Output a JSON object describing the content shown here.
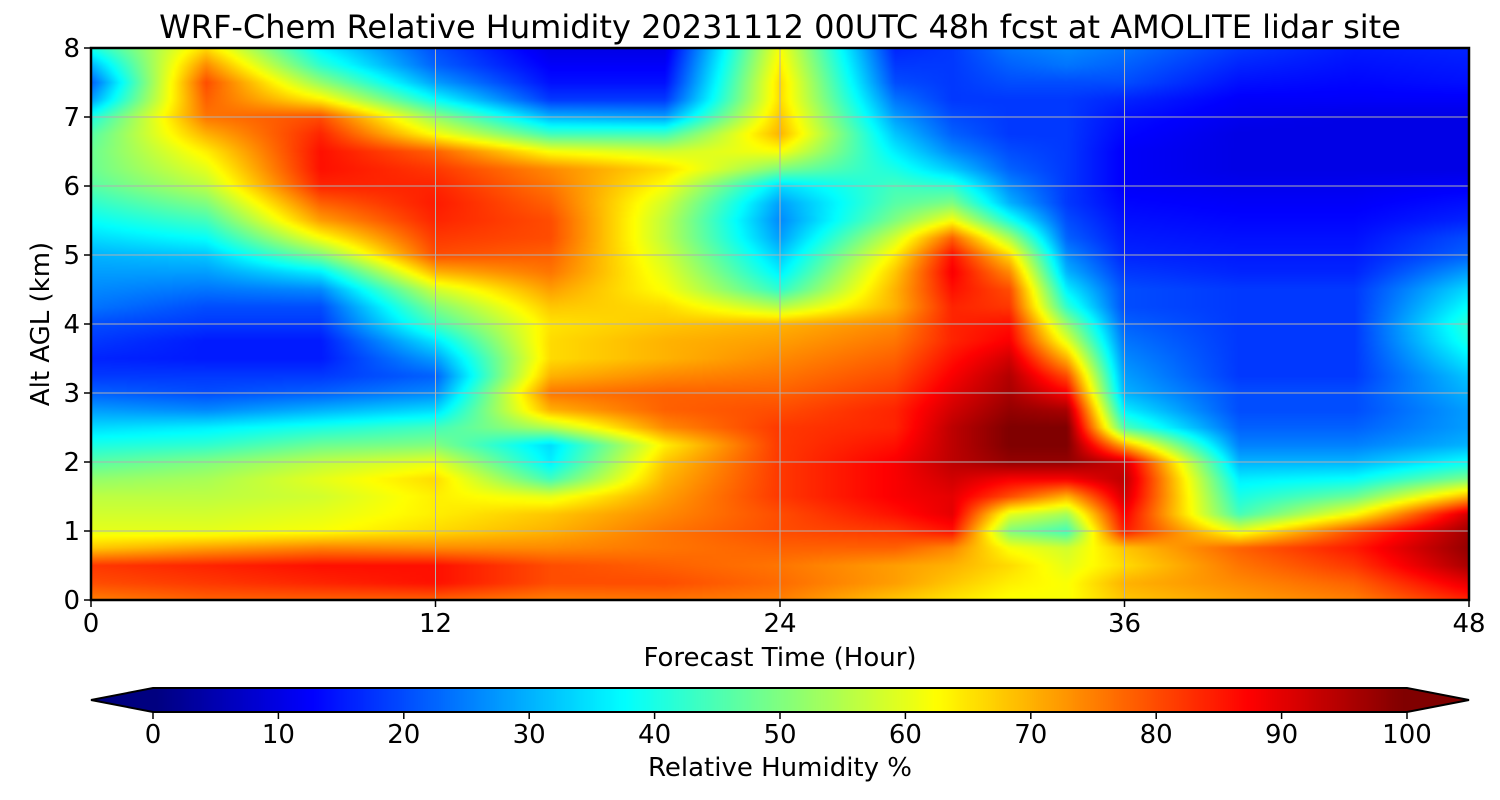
{
  "chart_data": {
    "type": "heatmap",
    "title": "WRF-Chem Relative Humidity 20231112 00UTC 48h fcst at AMOLITE lidar site",
    "xlabel": "Forecast Time (Hour)",
    "ylabel": "Alt AGL (km)",
    "xlim": [
      0,
      48
    ],
    "ylim": [
      0,
      8
    ],
    "xticks": [
      0,
      12,
      24,
      36,
      48
    ],
    "yticks": [
      0,
      1,
      2,
      3,
      4,
      5,
      6,
      7,
      8
    ],
    "grid": true,
    "colorbar": {
      "label": "Relative Humidity %",
      "ticks": [
        0,
        10,
        20,
        30,
        40,
        50,
        60,
        70,
        80,
        90,
        100
      ],
      "range": [
        0,
        100
      ],
      "colormap": "jet",
      "extend": "both",
      "orientation": "horizontal"
    },
    "x": [
      0,
      4,
      8,
      12,
      16,
      20,
      24,
      28,
      30,
      32,
      34,
      36,
      40,
      44,
      48
    ],
    "y": [
      0,
      0.25,
      0.5,
      0.75,
      1,
      1.25,
      1.5,
      1.75,
      2,
      2.25,
      2.5,
      2.75,
      3,
      3.25,
      3.5,
      3.75,
      4,
      4.25,
      4.5,
      4.75,
      5,
      5.25,
      5.5,
      5.75,
      6,
      6.25,
      6.5,
      6.75,
      7,
      7.25,
      7.5,
      7.75,
      8
    ],
    "z": [
      [
        75,
        78,
        78,
        78,
        75,
        76,
        75,
        68,
        65,
        62,
        62,
        68,
        72,
        75,
        84
      ],
      [
        80,
        82,
        84,
        86,
        80,
        80,
        77,
        72,
        68,
        64,
        62,
        70,
        74,
        78,
        90
      ],
      [
        82,
        84,
        86,
        86,
        80,
        78,
        76,
        72,
        70,
        66,
        60,
        66,
        76,
        82,
        96
      ],
      [
        68,
        72,
        75,
        74,
        74,
        76,
        78,
        78,
        74,
        62,
        58,
        68,
        78,
        85,
        98
      ],
      [
        60,
        60,
        62,
        66,
        70,
        76,
        80,
        82,
        86,
        50,
        44,
        85,
        60,
        80,
        97
      ],
      [
        58,
        58,
        60,
        64,
        68,
        74,
        80,
        86,
        90,
        60,
        54,
        88,
        44,
        62,
        92
      ],
      [
        56,
        56,
        58,
        64,
        60,
        72,
        82,
        88,
        90,
        80,
        70,
        92,
        40,
        48,
        70
      ],
      [
        52,
        54,
        60,
        66,
        44,
        70,
        82,
        88,
        92,
        88,
        88,
        94,
        36,
        38,
        50
      ],
      [
        46,
        50,
        56,
        60,
        36,
        68,
        82,
        88,
        94,
        98,
        98,
        92,
        30,
        30,
        38
      ],
      [
        40,
        42,
        48,
        50,
        34,
        64,
        82,
        86,
        94,
        100,
        100,
        70,
        25,
        25,
        30
      ],
      [
        34,
        36,
        40,
        44,
        55,
        74,
        82,
        84,
        94,
        100,
        100,
        45,
        22,
        22,
        28
      ],
      [
        28,
        26,
        30,
        34,
        70,
        78,
        80,
        84,
        92,
        98,
        96,
        36,
        20,
        20,
        28
      ],
      [
        22,
        20,
        22,
        26,
        76,
        78,
        78,
        82,
        90,
        96,
        88,
        30,
        20,
        20,
        30
      ],
      [
        18,
        18,
        18,
        22,
        70,
        74,
        76,
        80,
        88,
        95,
        80,
        28,
        18,
        18,
        32
      ],
      [
        16,
        15,
        15,
        28,
        66,
        70,
        74,
        78,
        86,
        92,
        70,
        26,
        18,
        18,
        36
      ],
      [
        18,
        15,
        15,
        35,
        66,
        70,
        72,
        76,
        84,
        88,
        60,
        24,
        18,
        18,
        40
      ],
      [
        20,
        18,
        18,
        44,
        65,
        68,
        70,
        74,
        84,
        86,
        52,
        22,
        18,
        18,
        42
      ],
      [
        24,
        20,
        20,
        50,
        68,
        66,
        55,
        70,
        84,
        82,
        42,
        20,
        18,
        18,
        38
      ],
      [
        26,
        24,
        26,
        58,
        72,
        62,
        42,
        70,
        86,
        80,
        36,
        20,
        18,
        18,
        34
      ],
      [
        28,
        28,
        36,
        70,
        76,
        60,
        36,
        68,
        88,
        74,
        30,
        18,
        16,
        16,
        28
      ],
      [
        30,
        32,
        50,
        80,
        78,
        58,
        32,
        64,
        86,
        66,
        26,
        16,
        15,
        15,
        22
      ],
      [
        34,
        38,
        62,
        82,
        80,
        56,
        28,
        58,
        78,
        54,
        22,
        15,
        14,
        14,
        20
      ],
      [
        38,
        44,
        72,
        84,
        80,
        56,
        26,
        50,
        62,
        40,
        20,
        14,
        13,
        13,
        16
      ],
      [
        42,
        50,
        78,
        85,
        78,
        58,
        28,
        46,
        50,
        30,
        18,
        13,
        12,
        12,
        14
      ],
      [
        46,
        56,
        84,
        84,
        76,
        62,
        34,
        44,
        42,
        26,
        18,
        12,
        11,
        11,
        12
      ],
      [
        48,
        60,
        86,
        82,
        74,
        66,
        50,
        40,
        32,
        22,
        18,
        12,
        10,
        10,
        10
      ],
      [
        48,
        64,
        86,
        78,
        62,
        58,
        62,
        36,
        26,
        20,
        18,
        12,
        10,
        10,
        10
      ],
      [
        46,
        70,
        84,
        62,
        44,
        44,
        70,
        32,
        22,
        18,
        18,
        13,
        10,
        10,
        10
      ],
      [
        40,
        76,
        80,
        52,
        30,
        28,
        68,
        28,
        20,
        18,
        18,
        14,
        11,
        10,
        10
      ],
      [
        28,
        78,
        64,
        38,
        18,
        18,
        66,
        24,
        18,
        18,
        18,
        16,
        12,
        12,
        12
      ],
      [
        22,
        80,
        52,
        28,
        14,
        14,
        66,
        20,
        18,
        20,
        20,
        20,
        14,
        13,
        14
      ],
      [
        30,
        74,
        42,
        22,
        12,
        12,
        64,
        18,
        18,
        22,
        24,
        22,
        16,
        14,
        15
      ],
      [
        40,
        66,
        36,
        20,
        10,
        10,
        62,
        16,
        18,
        24,
        26,
        24,
        18,
        15,
        16
      ]
    ]
  }
}
